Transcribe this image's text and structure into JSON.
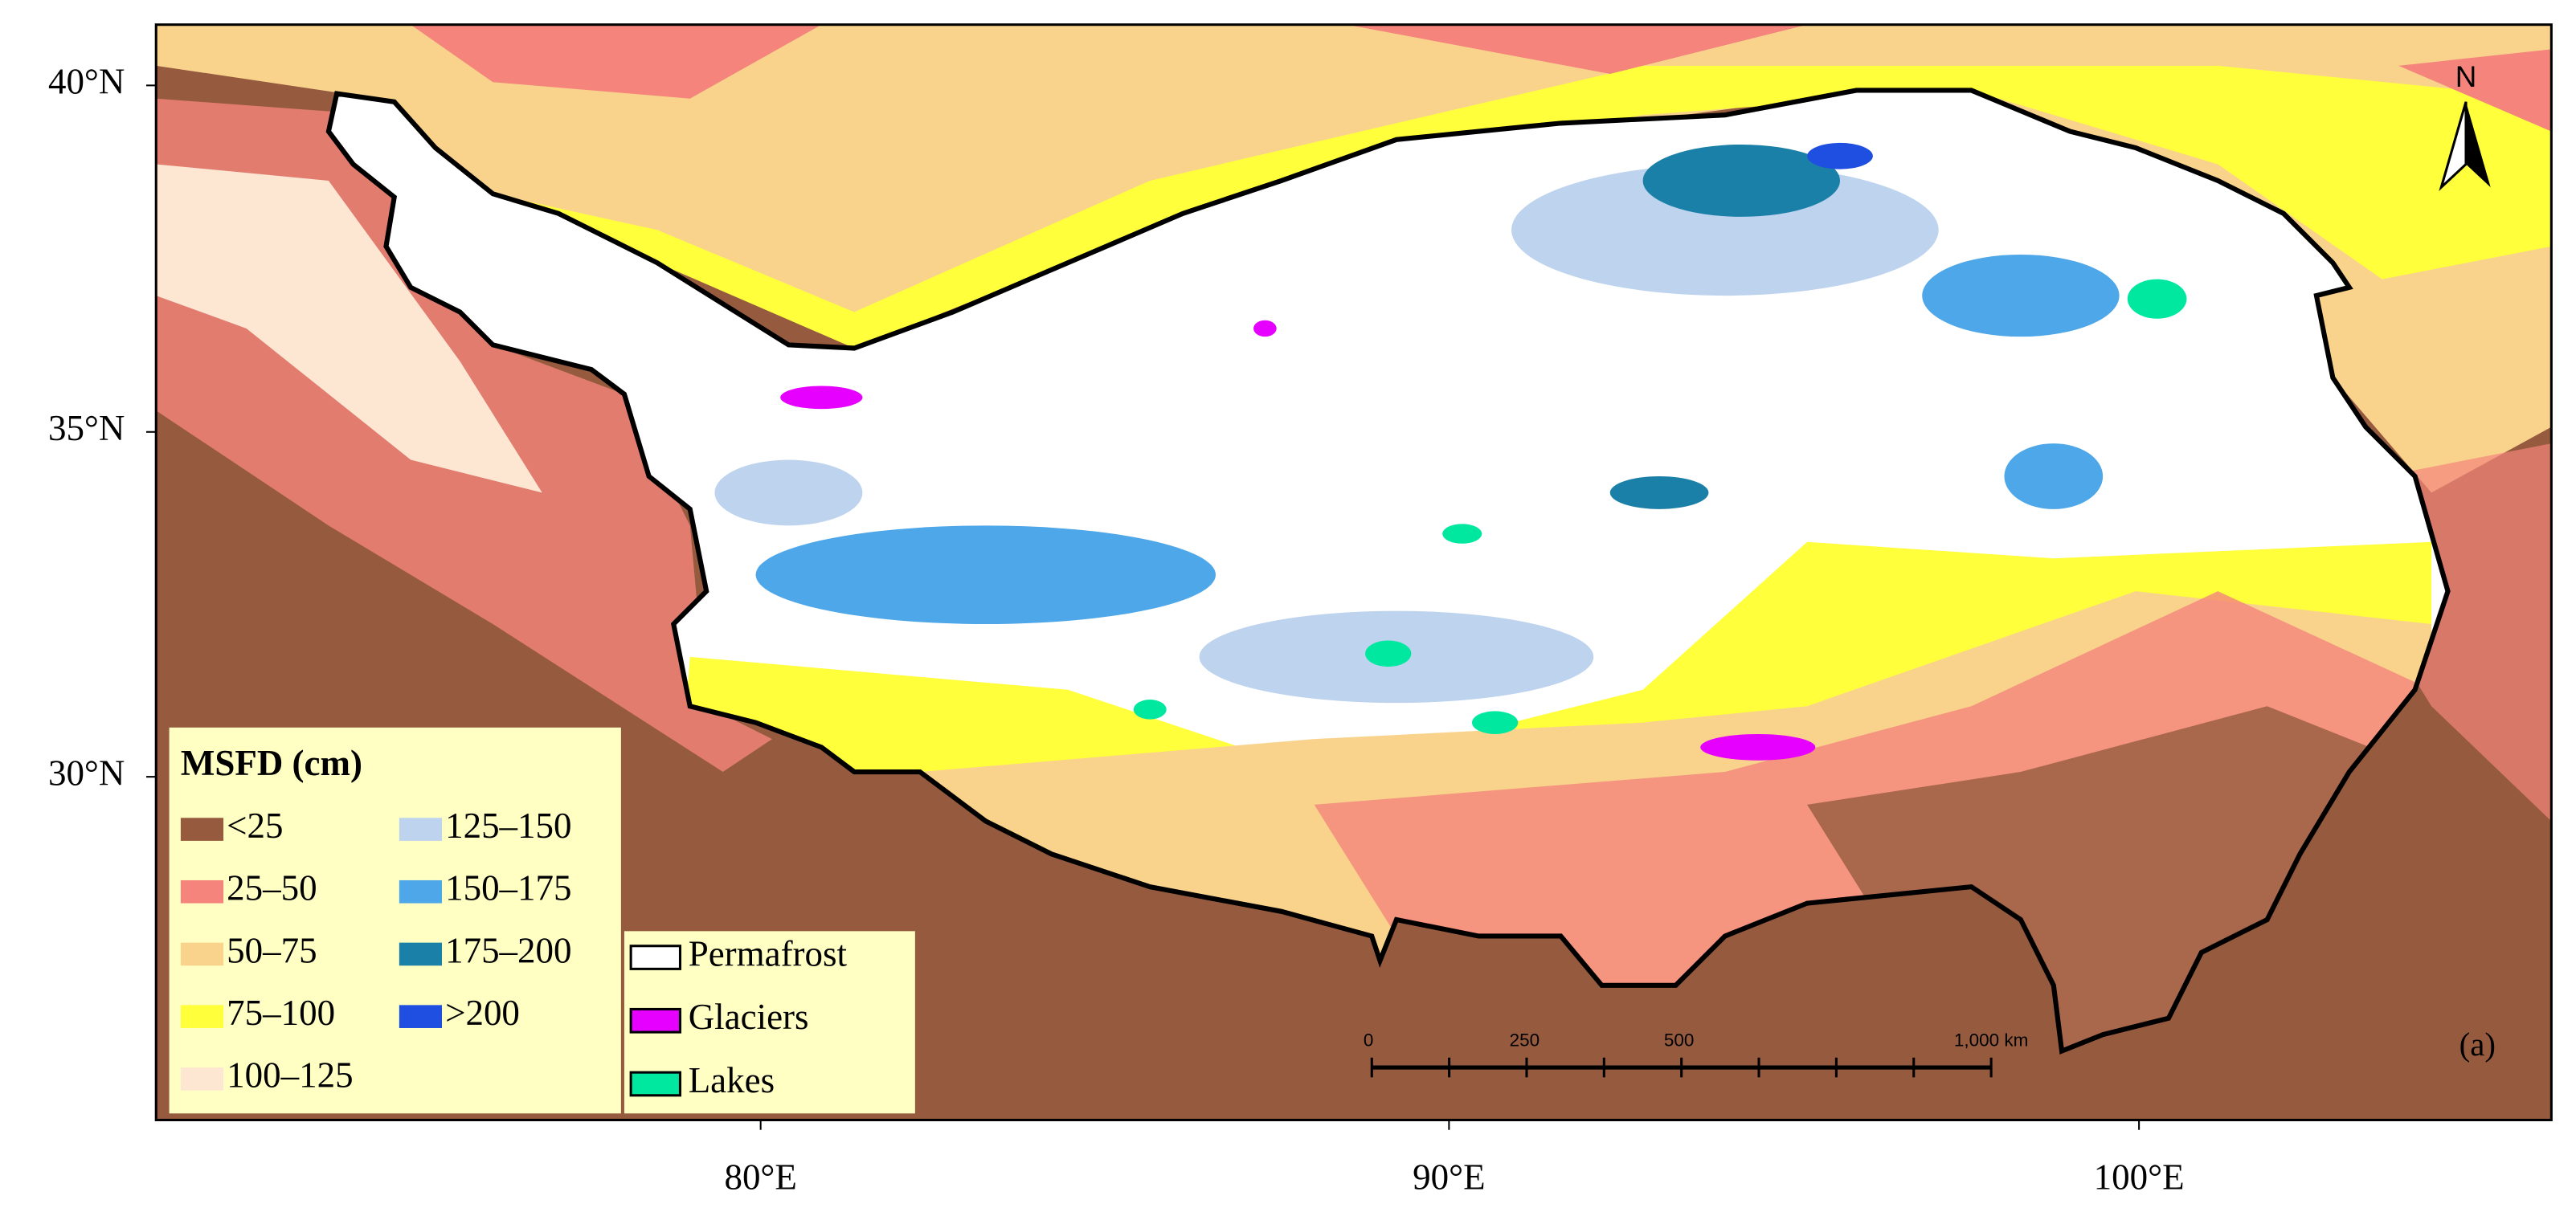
{
  "map": {
    "lat_ticks": [
      "40°N",
      "35°N",
      "30°N"
    ],
    "lon_ticks": [
      "80°E",
      "90°E",
      "100°E"
    ],
    "north_arrow": "N",
    "panel_label": "(a)",
    "legend": {
      "title": "MSFD (cm)",
      "items": [
        {
          "label": "<25",
          "color": "#965b3f"
        },
        {
          "label": "25–50",
          "color": "#f4847c"
        },
        {
          "label": "50–75",
          "color": "#f9d38c"
        },
        {
          "label": "75–100",
          "color": "#ffff3c"
        },
        {
          "label": "100–125",
          "color": "#fde6d2"
        },
        {
          "label": "125–150",
          "color": "#bdd3ee"
        },
        {
          "label": "150–175",
          "color": "#4ea7e8"
        },
        {
          "label": "175–200",
          "color": "#1b80a8"
        },
        {
          "label": ">200",
          "color": "#1f4fe0"
        }
      ]
    },
    "overlay_legend": [
      {
        "label": "Permafrost",
        "color": "#ffffff"
      },
      {
        "label": "Glaciers",
        "color": "#e600ff"
      },
      {
        "label": "Lakes",
        "color": "#00e8a0"
      }
    ],
    "scale_bar": [
      "0",
      "250",
      "500",
      "1,000 km"
    ]
  }
}
